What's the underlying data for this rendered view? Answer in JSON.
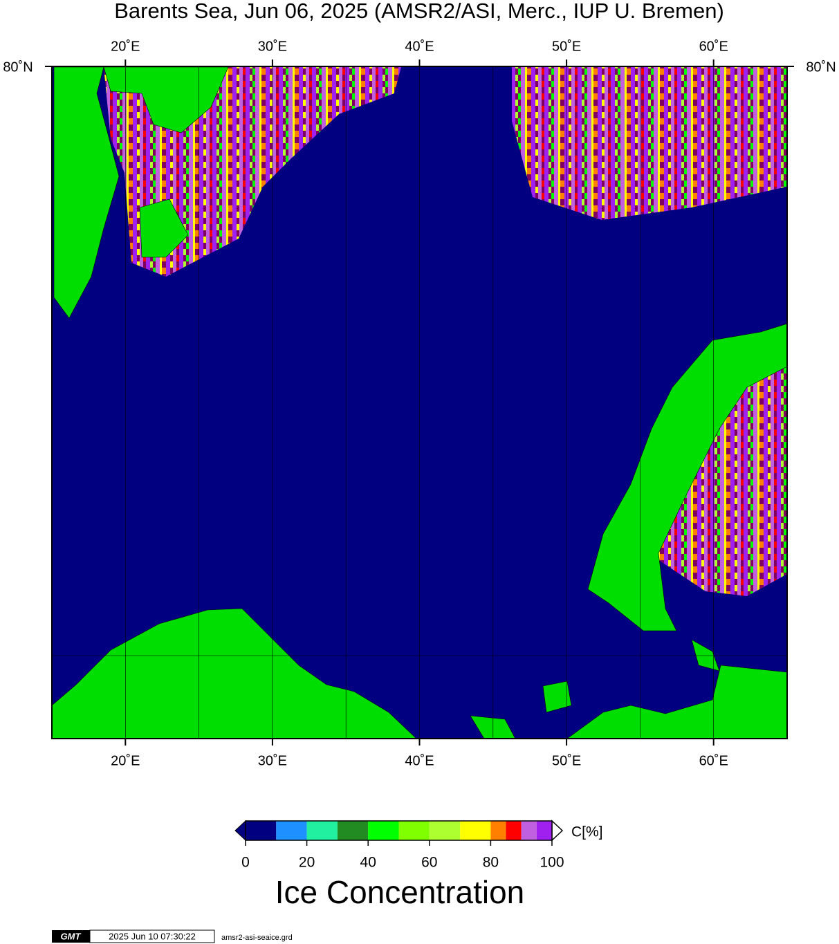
{
  "title": "Barents Sea, Jun 06, 2025 (AMSR2/ASI, Merc., IUP U. Bremen)",
  "map": {
    "lonlim": [
      15,
      65
    ],
    "lon_gridlines": [
      20,
      25,
      30,
      35,
      40,
      45,
      50,
      55,
      60
    ],
    "lon_ticks": [
      {
        "value": 20,
        "label": "20˚E"
      },
      {
        "value": 30,
        "label": "30˚E"
      },
      {
        "value": 40,
        "label": "40˚E"
      },
      {
        "value": 50,
        "label": "50˚E"
      },
      {
        "value": 60,
        "label": "60˚E"
      }
    ],
    "lat_label": "80˚N",
    "ocean_color": "#000080"
  },
  "colorbar": {
    "title": "Ice Concentration",
    "unit": "C[%]",
    "lim": [
      0,
      100
    ],
    "ticks": [
      0,
      20,
      40,
      60,
      80,
      100
    ],
    "levels": [
      0,
      10,
      20,
      30,
      40,
      50,
      60,
      70,
      80,
      85,
      90,
      95,
      100
    ],
    "colors": [
      "#000080",
      "#1e90ff",
      "#20f0a0",
      "#228b22",
      "#00ff00",
      "#7fff00",
      "#adff2f",
      "#ffff00",
      "#ff7f00",
      "#ff0000",
      "#c060e0",
      "#a020f0"
    ]
  },
  "footer": {
    "logo": "GMT",
    "timestamp": "2025 Jun 10 07:30:22",
    "file": "amsr2-asi-seaice.grd"
  }
}
